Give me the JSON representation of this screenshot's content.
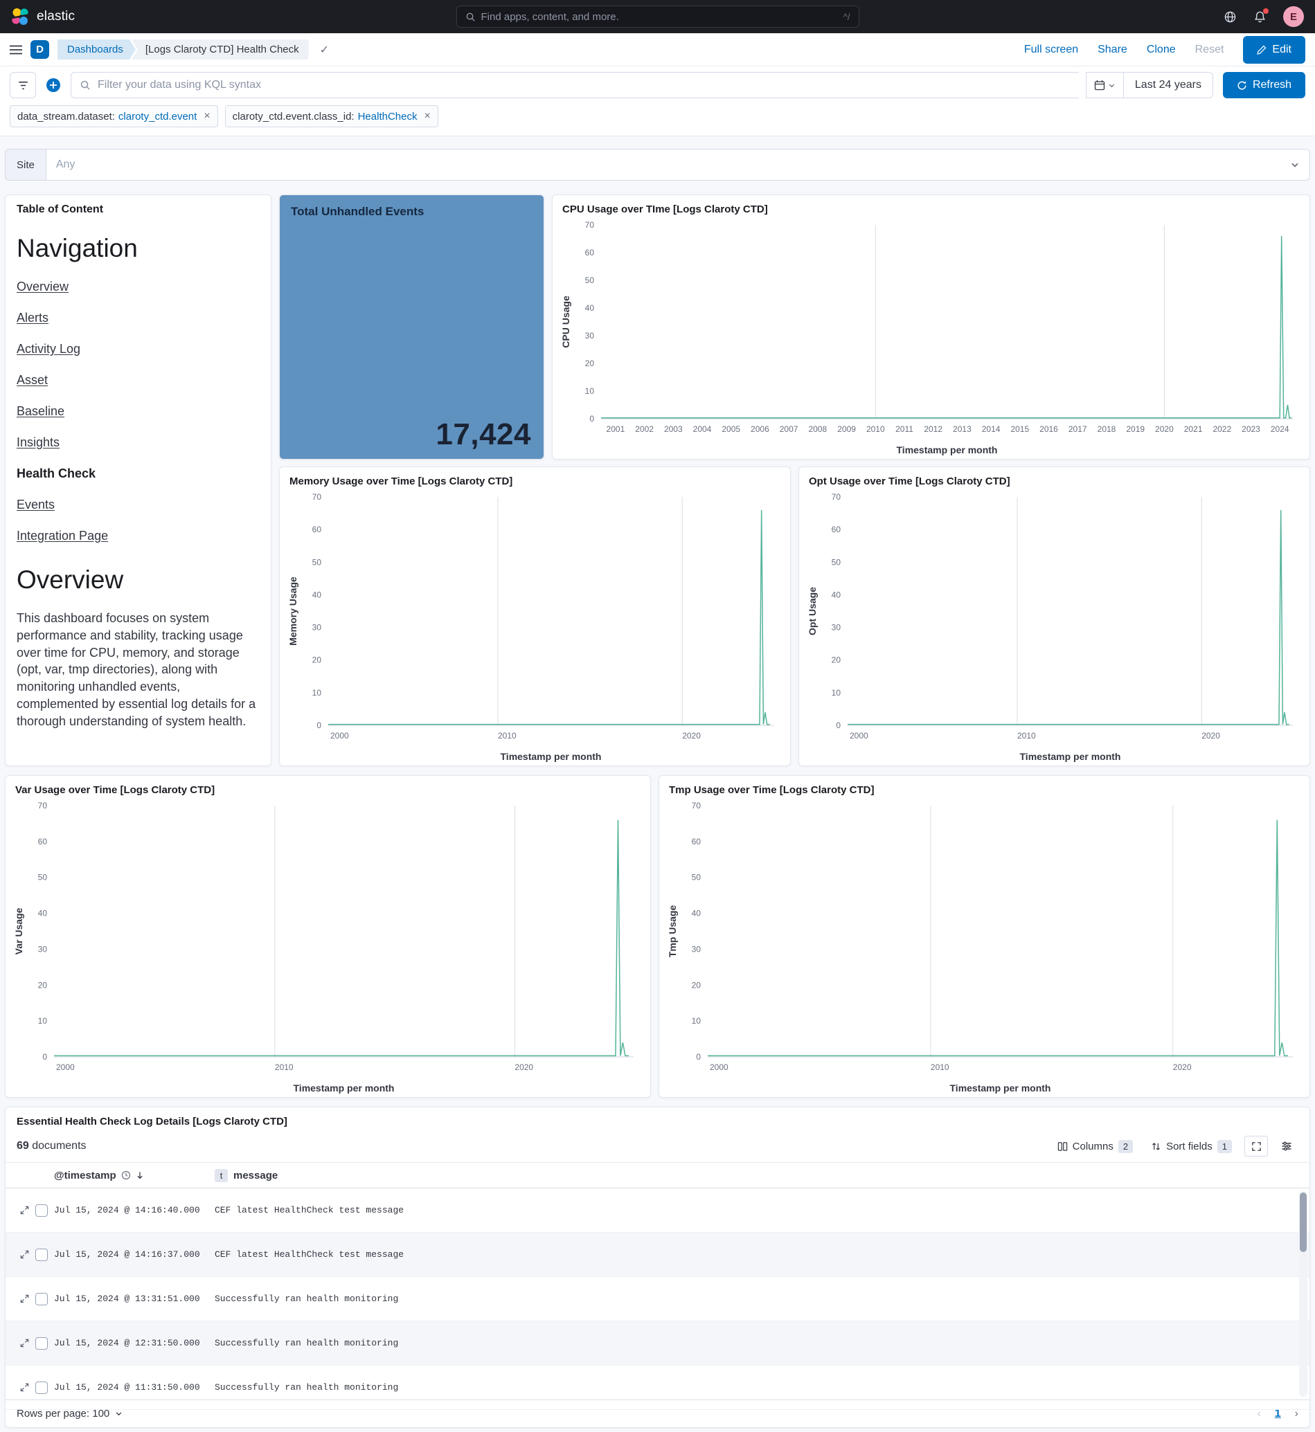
{
  "colors": {
    "accent": "#0071c2",
    "chart_line": "#54b399",
    "metric_bg": "#6092c0",
    "grid": "#d8dde6",
    "tick_text": "#69707d"
  },
  "icons": {
    "close": "×",
    "check": "✓",
    "prev": "‹",
    "next": "›"
  },
  "header": {
    "brand": "elastic",
    "search_placeholder": "Find apps, content, and more.",
    "shortcut": "^/",
    "avatar_initial": "E"
  },
  "nav": {
    "app_badge": "D",
    "breadcrumb_root": "Dashboards",
    "breadcrumb_current": "[Logs Claroty CTD] Health Check",
    "action_fullscreen": "Full screen",
    "action_share": "Share",
    "action_clone": "Clone",
    "action_reset": "Reset",
    "edit_label": "Edit"
  },
  "query_bar": {
    "kql_placeholder": "Filter your data using KQL syntax",
    "time_range": "Last 24 years",
    "refresh_label": "Refresh"
  },
  "filters": [
    {
      "field": "data_stream.dataset:",
      "value": "claroty_ctd.event"
    },
    {
      "field": "claroty_ctd.event.class_id:",
      "value": "HealthCheck"
    }
  ],
  "site_control": {
    "label": "Site",
    "placeholder": "Any"
  },
  "toc": {
    "panel_title": "Table of Content",
    "nav_heading": "Navigation",
    "links": [
      "Overview",
      "Alerts",
      "Activity Log",
      "Asset",
      "Baseline",
      "Insights"
    ],
    "current_item": "Health Check",
    "links_after": [
      "Events",
      "Integration Page"
    ],
    "section_heading": "Overview",
    "description": "This dashboard focuses on system performance and stability, tracking usage over time for CPU, memory, and storage (opt, var, tmp directories), along with monitoring unhandled events, complemented by essential log details for a thorough understanding of system health."
  },
  "metric": {
    "title": "Total Unhandled Events",
    "value": "17,424"
  },
  "chart_data": [
    {
      "type": "line",
      "title": "CPU Usage over TIme [Logs Claroty CTD]",
      "ylabel": "CPU Usage",
      "xlabel": "Timestamp per month",
      "ylim": [
        0,
        70
      ],
      "yticks": [
        0,
        10,
        20,
        30,
        40,
        50,
        60,
        70
      ],
      "xlim": [
        2000.5,
        2024.45
      ],
      "xticks": [
        2001,
        2002,
        2003,
        2004,
        2005,
        2006,
        2007,
        2008,
        2009,
        2010,
        2011,
        2012,
        2013,
        2014,
        2015,
        2016,
        2017,
        2018,
        2019,
        2020,
        2021,
        2022,
        2023,
        2024
      ],
      "xtick_anchor": "middle",
      "grid_x": [
        2010,
        2020
      ],
      "series": [
        {
          "name": "CPU Usage",
          "points": [
            [
              2000.5,
              0.3
            ],
            [
              2023.9,
              0.3
            ],
            [
              2024.0,
              0.3
            ],
            [
              2024.06,
              66
            ],
            [
              2024.13,
              0.3
            ],
            [
              2024.2,
              0.3
            ],
            [
              2024.27,
              5
            ],
            [
              2024.33,
              0.3
            ],
            [
              2024.4,
              0.3
            ]
          ]
        }
      ]
    },
    {
      "type": "line",
      "title": "Memory Usage over Time [Logs Claroty CTD]",
      "ylabel": "Memory Usage",
      "xlabel": "Timestamp per month",
      "ylim": [
        0,
        70
      ],
      "yticks": [
        0,
        10,
        20,
        30,
        40,
        50,
        60,
        70
      ],
      "xlim": [
        2000.8,
        2024.95
      ],
      "xticks": [
        2000,
        2010,
        2020
      ],
      "xtick_anchor": "start",
      "grid_x": [
        2010,
        2020
      ],
      "series": [
        {
          "name": "Memory Usage",
          "points": [
            [
              2000.8,
              0.3
            ],
            [
              2024.2,
              0.3
            ],
            [
              2024.3,
              66
            ],
            [
              2024.4,
              0.3
            ],
            [
              2024.5,
              4
            ],
            [
              2024.6,
              0.3
            ],
            [
              2024.75,
              0.3
            ]
          ]
        }
      ]
    },
    {
      "type": "line",
      "title": "Opt Usage over Time [Logs Claroty CTD]",
      "ylabel": "Opt Usage",
      "xlabel": "Timestamp per month",
      "ylim": [
        0,
        70
      ],
      "yticks": [
        0,
        10,
        20,
        30,
        40,
        50,
        60,
        70
      ],
      "xlim": [
        2000.8,
        2024.95
      ],
      "xticks": [
        2000,
        2010,
        2020
      ],
      "xtick_anchor": "start",
      "grid_x": [
        2010,
        2020
      ],
      "series": [
        {
          "name": "Opt Usage",
          "points": [
            [
              2000.8,
              0.3
            ],
            [
              2024.2,
              0.3
            ],
            [
              2024.3,
              66
            ],
            [
              2024.4,
              0.3
            ],
            [
              2024.5,
              4
            ],
            [
              2024.6,
              0.3
            ],
            [
              2024.75,
              0.3
            ]
          ]
        }
      ]
    },
    {
      "type": "line",
      "title": "Var Usage over Time [Logs Claroty CTD]",
      "ylabel": "Var Usage",
      "xlabel": "Timestamp per month",
      "ylim": [
        0,
        70
      ],
      "yticks": [
        0,
        10,
        20,
        30,
        40,
        50,
        60,
        70
      ],
      "xlim": [
        2000.8,
        2024.95
      ],
      "xticks": [
        2000,
        2010,
        2020
      ],
      "xtick_anchor": "start",
      "grid_x": [
        2010,
        2020
      ],
      "series": [
        {
          "name": "Var Usage",
          "points": [
            [
              2000.8,
              0.3
            ],
            [
              2024.2,
              0.3
            ],
            [
              2024.3,
              66
            ],
            [
              2024.4,
              0.3
            ],
            [
              2024.5,
              4
            ],
            [
              2024.6,
              0.3
            ],
            [
              2024.75,
              0.3
            ]
          ]
        }
      ]
    },
    {
      "type": "line",
      "title": "Tmp Usage over Time [Logs Claroty CTD]",
      "ylabel": "Tmp Usage",
      "xlabel": "Timestamp per month",
      "ylim": [
        0,
        70
      ],
      "yticks": [
        0,
        10,
        20,
        30,
        40,
        50,
        60,
        70
      ],
      "xlim": [
        2000.8,
        2024.95
      ],
      "xticks": [
        2000,
        2010,
        2020
      ],
      "xtick_anchor": "start",
      "grid_x": [
        2010,
        2020
      ],
      "series": [
        {
          "name": "Tmp Usage",
          "points": [
            [
              2000.8,
              0.3
            ],
            [
              2024.2,
              0.3
            ],
            [
              2024.3,
              66
            ],
            [
              2024.4,
              0.3
            ],
            [
              2024.5,
              4
            ],
            [
              2024.6,
              0.3
            ],
            [
              2024.75,
              0.3
            ]
          ]
        }
      ]
    }
  ],
  "logs": {
    "title": "Essential Health Check Log Details [Logs Claroty CTD]",
    "doc_count": "69",
    "doc_label": "documents",
    "columns_label": "Columns",
    "columns_badge": "2",
    "sort_label": "Sort fields",
    "sort_badge": "1",
    "col_timestamp": "@timestamp",
    "type_badge": "t",
    "col_message": "message",
    "rows": [
      {
        "timestamp": "Jul 15, 2024 @ 14:16:40.000",
        "message": "CEF latest HealthCheck test message"
      },
      {
        "timestamp": "Jul 15, 2024 @ 14:16:37.000",
        "message": "CEF latest HealthCheck test message"
      },
      {
        "timestamp": "Jul 15, 2024 @ 13:31:51.000",
        "message": "Successfully ran health monitoring"
      },
      {
        "timestamp": "Jul 15, 2024 @ 12:31:50.000",
        "message": "Successfully ran health monitoring"
      },
      {
        "timestamp": "Jul 15, 2024 @ 11:31:50.000",
        "message": "Successfully ran health monitoring"
      }
    ],
    "rows_per_page": "Rows per page: 100",
    "page": "1"
  }
}
